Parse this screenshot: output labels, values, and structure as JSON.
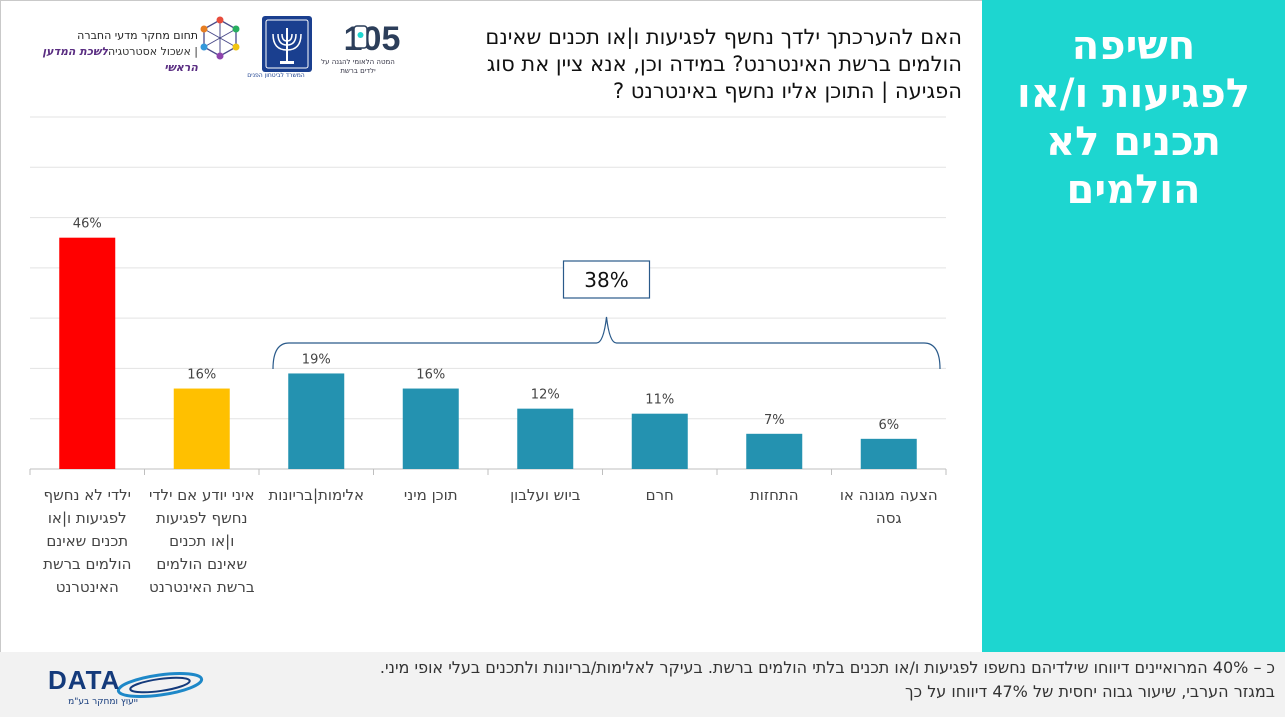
{
  "panel": {
    "title": "חשיפה לפגיעות ו/או תכנים לא הולמים"
  },
  "question": "האם להערכתך ילדך נחשף לפגיעות ו|או תכנים שאינם הולמים ברשת האינטרנט? במידה וכן, אנא ציין את סוג הפגיעה | התוכן אליו נחשף באינטרנט ?",
  "logos": {
    "research_line1": "תחום מחקר מדעי החברה",
    "research_line2_bold": "לשכת המדען הראשי",
    "research_line2_rest": " | אשכול אסטרטגיה",
    "logo105_number": "105",
    "logo105_caption": "המטה הלאומי להגנה על ילדים ברשת",
    "emblem_caption": "המשרד לביטחון הפנים"
  },
  "colors": {
    "teal_panel": "#1dd6d0",
    "bar_red": "#ff0000",
    "bar_yellow": "#ffc000",
    "bar_blue": "#2492b0"
  },
  "chart_data": {
    "type": "bar",
    "categories": [
      [
        "ילדי לא נחשף",
        "לפגיעות ו|או",
        "תכנים שאינם",
        "הולמים ברשת",
        "האינטרנט"
      ],
      [
        "איני יודע אם ילדי",
        "נחשף לפגיעות",
        "ו|או תכנים",
        "שאינם הולמים",
        "ברשת האינטרנט"
      ],
      [
        "אלימות|בריונות"
      ],
      [
        "תוכן מיני"
      ],
      [
        "ביוש ועלבון"
      ],
      [
        "חרם"
      ],
      [
        "התחזות"
      ],
      [
        "הצעה מגונה או",
        "גסה"
      ]
    ],
    "values": [
      46,
      16,
      19,
      16,
      12,
      11,
      7,
      6
    ],
    "value_labels": [
      "46%",
      "16%",
      "19%",
      "16%",
      "12%",
      "11%",
      "7%",
      "6%"
    ],
    "bar_colors": [
      "#ff0000",
      "#ffc000",
      "#2492b0",
      "#2492b0",
      "#2492b0",
      "#2492b0",
      "#2492b0",
      "#2492b0"
    ],
    "ylim": [
      0,
      70
    ],
    "grid": true,
    "group_bracket": {
      "from_index": 2,
      "to_index": 7,
      "label": "38%"
    }
  },
  "footnote": {
    "line1": "כ – 40% המרואיינים דיווחו שילדיהם נחשפו לפגיעות ו/או תכנים בלתי הולמים ברשת. בעיקר לאלימות/בריונות ולתכנים בעלי אופי מיני.",
    "line2": "במגזר הערבי, שיעור גבוה יחסית של 47% דיווחו על כך"
  },
  "brand": {
    "name": "DATA",
    "tagline": "ייעוץ ומחקר בע\"מ"
  }
}
